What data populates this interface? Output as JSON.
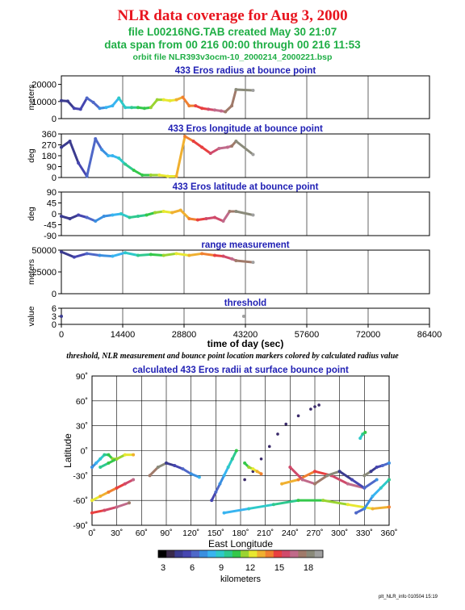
{
  "header": {
    "title": "NLR data coverage for Aug 3, 2000",
    "file_line": "file L00216NG.TAB created May 30 21:07",
    "span_line": "data span from 00 216 00:00 through 00 216 11:53",
    "orbit_line": "orbit file NLR393v3ocm-10_2000214_2000221.bsp"
  },
  "colors": {
    "title": "#e8141e",
    "subtitle": "#1fae45",
    "panel_title": "#1f1fb4",
    "grid": "#000000"
  },
  "note": "threshold, NLR measurement and bounce point location markers colored by calculated radius value",
  "footer": "plt_NLR_info 010504 15:19",
  "colorbar": {
    "label": "kilometers",
    "ticks": [
      "3",
      "6",
      "9",
      "12",
      "15",
      "18"
    ],
    "tick_values": [
      3,
      6,
      9,
      12,
      15,
      18
    ],
    "range": [
      2.5,
      19.5
    ],
    "colors": [
      "#000000",
      "#3a2a4a",
      "#3b3b8f",
      "#4646b0",
      "#4f68c8",
      "#3a8fe0",
      "#38b4f0",
      "#2ec9c9",
      "#2ec98f",
      "#34c84a",
      "#9ad431",
      "#e8e830",
      "#f0b030",
      "#f08030",
      "#e84040",
      "#d04a6a",
      "#c06a8a",
      "#a07a6a",
      "#8a8a7a",
      "#a0a0a0"
    ]
  },
  "chart_data": [
    {
      "type": "scatter",
      "title": "433 Eros radius at bounce point",
      "ylabel": "meters",
      "yticks": [
        "0",
        "10000",
        "20000"
      ],
      "ylim": [
        0,
        25000
      ],
      "xlim": [
        0,
        86400
      ],
      "series": [
        {
          "x": [
            0,
            1500,
            3000,
            4500,
            6000,
            7500,
            9000,
            10500,
            12000,
            13500,
            15000,
            16500,
            18000,
            19500,
            21000,
            22500,
            24000,
            25500,
            27000,
            28500,
            30000,
            31500,
            33000,
            34500,
            36000,
            37500,
            38500,
            40000,
            41000,
            45000
          ],
          "y": [
            10500,
            10200,
            6000,
            5500,
            12000,
            9500,
            6000,
            6500,
            7500,
            12000,
            6500,
            6500,
            6500,
            6000,
            6500,
            11000,
            11000,
            10500,
            11000,
            12500,
            7500,
            7500,
            6000,
            5500,
            5000,
            4500,
            4000,
            7500,
            17000,
            16500
          ]
        }
      ]
    },
    {
      "type": "scatter",
      "title": "433 Eros longitude at bounce point",
      "ylabel": "deg",
      "yticks": [
        "0",
        "90",
        "180",
        "270",
        "360"
      ],
      "ylim": [
        0,
        360
      ],
      "xlim": [
        0,
        86400
      ],
      "series": [
        {
          "x": [
            0,
            2000,
            4000,
            6000,
            8000,
            9500,
            11000,
            12000,
            13500,
            15000,
            17000,
            19000,
            21000,
            23000,
            25000,
            27000,
            29000,
            31000,
            33000,
            35000,
            37000,
            39000,
            40000,
            41000,
            45000
          ],
          "y": [
            250,
            300,
            120,
            10,
            320,
            230,
            180,
            180,
            160,
            110,
            60,
            20,
            20,
            20,
            10,
            10,
            340,
            300,
            250,
            200,
            240,
            250,
            260,
            300,
            190
          ]
        }
      ]
    },
    {
      "type": "scatter",
      "title": "433 Eros latitude at bounce point",
      "ylabel": "deg",
      "yticks": [
        "-90",
        "-45",
        "0",
        "45",
        "90"
      ],
      "ylim": [
        -90,
        90
      ],
      "xlim": [
        0,
        86400
      ],
      "series": [
        {
          "x": [
            0,
            2000,
            4000,
            6000,
            8000,
            10000,
            12000,
            14000,
            16000,
            18000,
            20000,
            22000,
            24000,
            26000,
            28000,
            30000,
            32000,
            34000,
            36000,
            38000,
            39500,
            41000,
            45000
          ],
          "y": [
            -10,
            -20,
            -5,
            -15,
            -30,
            -10,
            -5,
            0,
            -15,
            -10,
            -5,
            5,
            10,
            5,
            15,
            -20,
            -25,
            -20,
            -15,
            -30,
            10,
            10,
            -5
          ]
        }
      ]
    },
    {
      "type": "scatter",
      "title": "range measurement",
      "ylabel": "meters",
      "yticks": [
        "0",
        "25000",
        "50000"
      ],
      "ylim": [
        0,
        50000
      ],
      "xlim": [
        0,
        86400
      ],
      "series": [
        {
          "x": [
            0,
            3000,
            6000,
            9000,
            12000,
            15000,
            18000,
            21000,
            24000,
            27000,
            30000,
            33000,
            36000,
            38000,
            40000,
            41000,
            45000
          ],
          "y": [
            48000,
            42000,
            46000,
            44000,
            43000,
            47000,
            44000,
            45000,
            44000,
            46000,
            44000,
            46000,
            44000,
            43000,
            40000,
            38000,
            36000
          ]
        }
      ]
    },
    {
      "type": "scatter",
      "title": "threshold",
      "ylabel": "value",
      "xlabel": "time of day (sec)",
      "yticks": [
        "0",
        "3",
        "6"
      ],
      "ylim": [
        0,
        6
      ],
      "xlim": [
        0,
        86400
      ],
      "xticks": [
        "0",
        "14400",
        "28800",
        "43200",
        "57600",
        "72000",
        "86400"
      ],
      "xtick_values": [
        0,
        14400,
        28800,
        43200,
        57600,
        72000,
        86400
      ],
      "series": [
        {
          "x": [
            0,
            42800
          ],
          "y": [
            3,
            3
          ]
        }
      ]
    },
    {
      "type": "scatter",
      "title": "calculated 433 Eros radii at surface bounce point",
      "xlabel": "East Longitude",
      "ylabel": "Latitude",
      "xlim": [
        0,
        360
      ],
      "ylim": [
        -90,
        90
      ],
      "xticks": [
        "0˚",
        "30˚",
        "60˚",
        "90˚",
        "120˚",
        "150˚",
        "180˚",
        "210˚",
        "240˚",
        "270˚",
        "300˚",
        "330˚",
        "360˚"
      ],
      "xtick_values": [
        0,
        30,
        60,
        90,
        120,
        150,
        180,
        210,
        240,
        270,
        300,
        330,
        360
      ],
      "yticks": [
        "-90˚",
        "-60˚",
        "-30˚",
        "0˚",
        "30˚",
        "60˚",
        "90˚"
      ],
      "ytick_values": [
        -90,
        -60,
        -30,
        0,
        30,
        60,
        90
      ],
      "series": [
        {
          "lon": [
            185,
            195,
            205,
            215,
            225,
            235,
            250,
            265,
            270,
            275
          ],
          "lat": [
            -35,
            -25,
            -10,
            5,
            20,
            32,
            42,
            50,
            53,
            55
          ]
        },
        {
          "lon": [
            0,
            5,
            10,
            15,
            20,
            25,
            30
          ],
          "lat": [
            -20,
            -15,
            -10,
            -5,
            -5,
            -10,
            -10
          ]
        },
        {
          "lon": [
            10,
            20,
            30,
            40,
            50
          ],
          "lat": [
            -20,
            -15,
            -10,
            -5,
            -5
          ]
        },
        {
          "lon": [
            0,
            10,
            20,
            30,
            40,
            50
          ],
          "lat": [
            -60,
            -55,
            -50,
            -45,
            -40,
            -35
          ]
        },
        {
          "lon": [
            0,
            15,
            30,
            45
          ],
          "lat": [
            -75,
            -72,
            -68,
            -63
          ]
        },
        {
          "lon": [
            70,
            80,
            90,
            100,
            110,
            120,
            130
          ],
          "lat": [
            -30,
            -20,
            -15,
            -18,
            -22,
            -28,
            -32
          ]
        },
        {
          "lon": [
            145,
            150,
            155,
            160,
            165,
            170,
            175
          ],
          "lat": [
            -60,
            -50,
            -40,
            -30,
            -20,
            -10,
            0
          ]
        },
        {
          "lon": [
            160,
            190,
            220,
            250,
            280,
            310,
            340,
            360
          ],
          "lat": [
            -75,
            -70,
            -65,
            -60,
            -60,
            -65,
            -70,
            -68
          ]
        },
        {
          "lon": [
            185,
            190,
            195,
            200,
            205
          ],
          "lat": [
            -15,
            -20,
            -22,
            -25,
            -28
          ]
        },
        {
          "lon": [
            230,
            250,
            270,
            290,
            310,
            330
          ],
          "lat": [
            -40,
            -35,
            -25,
            -30,
            -40,
            -45
          ]
        },
        {
          "lon": [
            240,
            255,
            270,
            285,
            300,
            315,
            330,
            345
          ],
          "lat": [
            -20,
            -35,
            -40,
            -30,
            -25,
            -35,
            -45,
            -35
          ]
        },
        {
          "lon": [
            330,
            338,
            345,
            352,
            360
          ],
          "lat": [
            -30,
            -25,
            -20,
            -18,
            -15
          ]
        },
        {
          "lon": [
            320,
            330,
            340,
            350,
            360
          ],
          "lat": [
            -75,
            -70,
            -55,
            -45,
            -35
          ]
        },
        {
          "lon": [
            325,
            328,
            331
          ],
          "lat": [
            15,
            20,
            22
          ]
        }
      ]
    }
  ]
}
